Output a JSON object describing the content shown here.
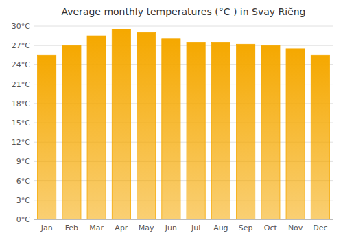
{
  "chart_data": {
    "type": "bar",
    "title": "Average monthly temperatures (°C ) in Svay Riĕ̈ng",
    "categories": [
      "Jan",
      "Feb",
      "Mar",
      "Apr",
      "May",
      "Jun",
      "Jul",
      "Aug",
      "Sep",
      "Oct",
      "Nov",
      "Dec"
    ],
    "values": [
      25.5,
      27.0,
      28.5,
      29.5,
      29.0,
      28.0,
      27.5,
      27.5,
      27.2,
      27.0,
      26.5,
      25.5
    ],
    "color": "#F5A800",
    "ylim": [
      0,
      30
    ],
    "yticks": [
      {
        "value": 0,
        "label": "0°C"
      },
      {
        "value": 3,
        "label": "3°C"
      },
      {
        "value": 6,
        "label": "6°C"
      },
      {
        "value": 9,
        "label": "9°C"
      },
      {
        "value": 12,
        "label": "12°C"
      },
      {
        "value": 15,
        "label": "15°C"
      },
      {
        "value": 18,
        "label": "18°C"
      },
      {
        "value": 21,
        "label": "21°C"
      },
      {
        "value": 24,
        "label": "24°C"
      },
      {
        "value": 27,
        "label": "27°C"
      },
      {
        "value": 30,
        "label": "30°C"
      }
    ],
    "grid": true
  }
}
